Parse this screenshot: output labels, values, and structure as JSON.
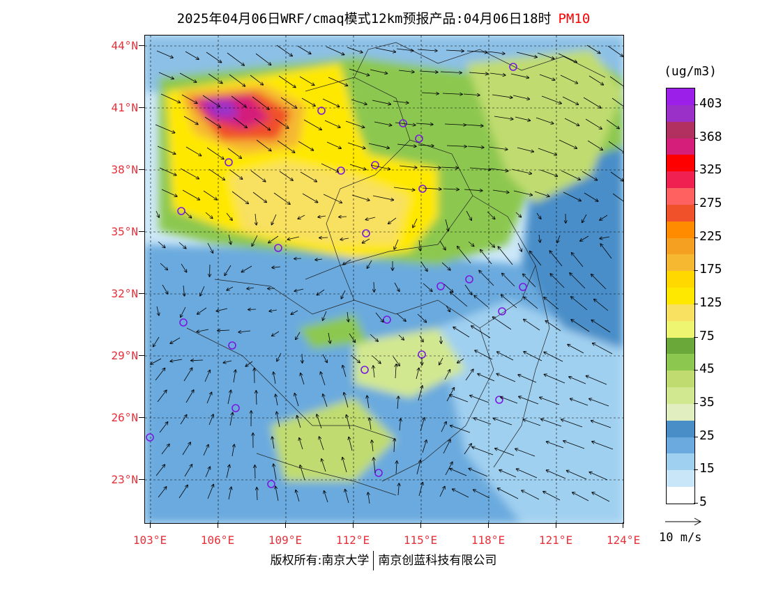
{
  "header": {
    "title": "2025年04月06日WRF/cmaq模式12km预报产品:04月06日18时",
    "variable": "PM10"
  },
  "map": {
    "lat_labels": [
      "44°N",
      "41°N",
      "38°N",
      "35°N",
      "32°N",
      "29°N",
      "26°N",
      "23°N"
    ],
    "lon_labels": [
      "103°E",
      "106°E",
      "109°E",
      "112°E",
      "115°E",
      "118°E",
      "121°E",
      "124°E"
    ],
    "extent": {
      "lon_min": 102.8,
      "lon_max": 124.0,
      "lat_min": 21.0,
      "lat_max": 44.4
    }
  },
  "legend": {
    "unit": "(ug/m3)",
    "labels": [
      "403",
      "368",
      "325",
      "275",
      "225",
      "175",
      "125",
      "75",
      "45",
      "35",
      "25",
      "15",
      "5"
    ],
    "colors": [
      "#9b1fe8",
      "#9b30c8",
      "#b23060",
      "#d41e7a",
      "#ff0000",
      "#f02050",
      "#ff6060",
      "#f0502a",
      "#ff8c00",
      "#f5a020",
      "#f5b830",
      "#ffd800",
      "#ffe800",
      "#f8e060",
      "#eef570",
      "#6aa83a",
      "#8cc850",
      "#c0dc70",
      "#d2e890",
      "#e0eec0",
      "#4a8ec8",
      "#6aaade",
      "#a0d0f0",
      "#c8e6f8",
      "#ffffff"
    ],
    "reference_vector": "10 m/s"
  },
  "footer": {
    "left": "版权所有:南京大学",
    "right": "南京创蓝科技有限公司"
  }
}
